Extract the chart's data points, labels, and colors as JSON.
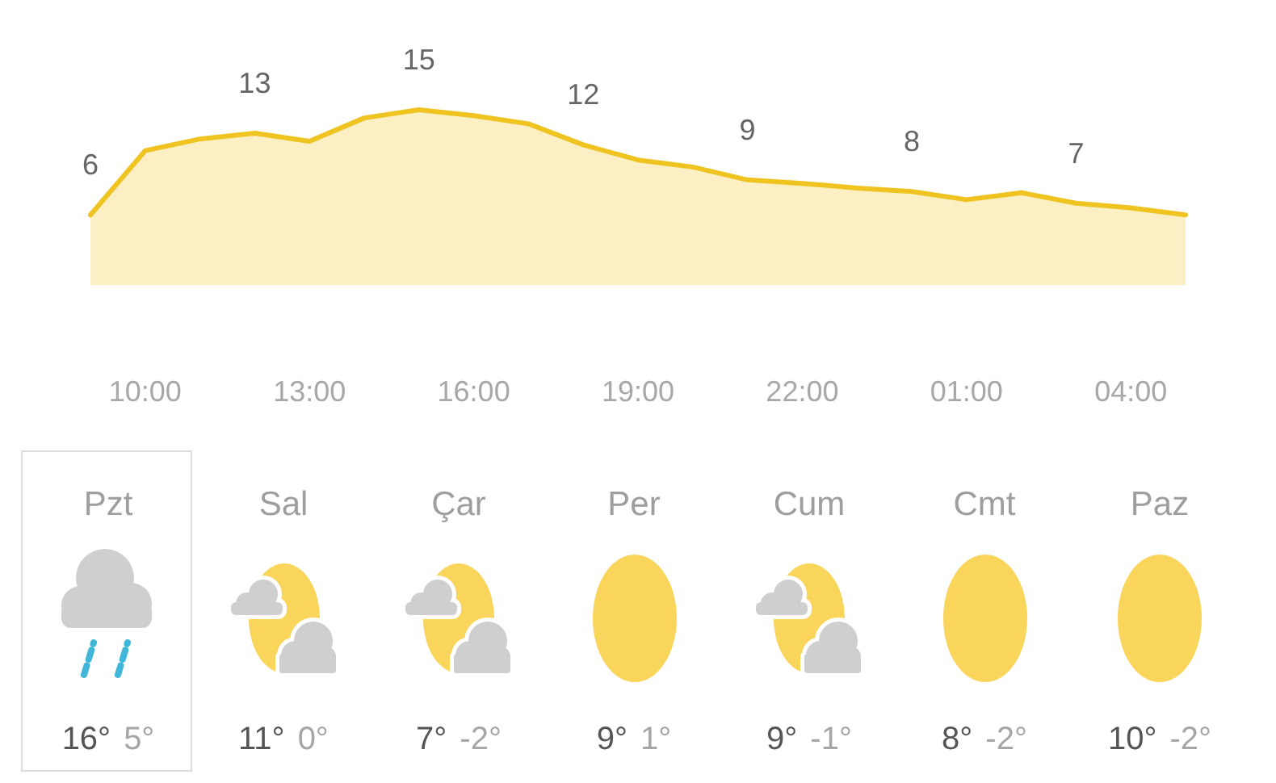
{
  "chart_data": [
    {
      "type": "area",
      "categories": [
        null,
        "10:00",
        null,
        null,
        "13:00",
        null,
        null,
        "16:00",
        null,
        null,
        "19:00",
        null,
        null,
        "22:00",
        null,
        null,
        "01:00",
        null,
        null,
        "04:00",
        null
      ],
      "values": [
        6,
        11.5,
        12.5,
        13,
        12.3,
        14.3,
        15,
        14.5,
        13.8,
        12,
        10.7,
        10.1,
        9,
        8.7,
        8.3,
        8,
        7.3,
        7.9,
        7,
        6.6,
        6
      ],
      "value_labels": [
        "6",
        null,
        null,
        "13",
        null,
        null,
        "15",
        null,
        null,
        "12",
        null,
        null,
        "9",
        null,
        null,
        "8",
        null,
        null,
        "7",
        null,
        null
      ],
      "color": "#efc320",
      "tick_labels": "x",
      "marker": "none"
    },
    {
      "type": "other",
      "annotations": [
        "Pzt",
        "16°",
        "5°",
        "Sal",
        "11°",
        "0°",
        "Çar",
        "7°",
        "-2°",
        "Per",
        "9°",
        "1°",
        "Cum",
        "9°",
        "-1°",
        "Cmt",
        "8°",
        "-2°",
        "Paz",
        "10°",
        "-2°"
      ]
    }
  ]
}
